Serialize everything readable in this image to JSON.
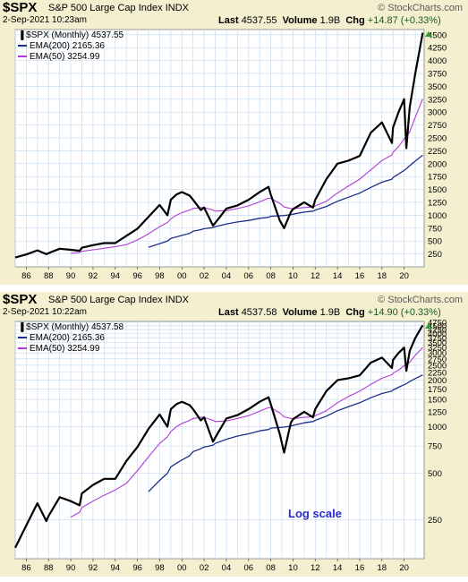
{
  "panels": [
    {
      "ticker": "$SPX",
      "index_name": "S&P 500 Large Cap Index",
      "exchange": "INDX",
      "brand": "© StockCharts.com",
      "datetime": "2-Sep-2021 10:23am",
      "last_label": "Last",
      "last_value": "4537.55",
      "volume_label": "Volume",
      "volume_value": "1.9B",
      "chg_label": "Chg",
      "chg_value": "+14.87 (+0.33%)",
      "legend_price": "$SPX (Monthly) 4537.55",
      "legend_ema200": "EMA(200) 2165.36",
      "legend_ema50": "EMA(50) 3254.99",
      "note": ""
    },
    {
      "ticker": "$SPX",
      "index_name": "S&P 500 Large Cap Index",
      "exchange": "INDX",
      "brand": "© StockCharts.com",
      "datetime": "2-Sep-2021 10:22am",
      "last_label": "Last",
      "last_value": "4537.58",
      "volume_label": "Volume",
      "volume_value": "1.9B",
      "chg_label": "Chg",
      "chg_value": "+14.90 (+0.33%)",
      "legend_price": "$SPX (Monthly) 4537.58",
      "legend_ema200": "EMA(200) 2165.36",
      "legend_ema50": "EMA(50) 3254.99",
      "note": "Log scale"
    }
  ],
  "colors": {
    "panel_bg": "#f3efcf",
    "plot_bg": "#ffffff",
    "grid": "#c9ddf0",
    "price": "#000000",
    "ema200": "#1c2f8c",
    "ema50": "#b03ad8",
    "up_marker": "#2f9e2f"
  },
  "chart_data": [
    {
      "type": "line",
      "scale": "linear",
      "x_tick_labels": [
        "86",
        "88",
        "90",
        "92",
        "94",
        "96",
        "98",
        "00",
        "02",
        "04",
        "06",
        "08",
        "10",
        "12",
        "14",
        "16",
        "18",
        "20"
      ],
      "y_tick_labels": [
        "250",
        "500",
        "750",
        "1000",
        "1250",
        "1500",
        "1750",
        "2000",
        "2250",
        "2500",
        "2750",
        "3000",
        "3250",
        "3500",
        "3750",
        "4000",
        "4250",
        "4500"
      ],
      "ylim": [
        0,
        4600
      ],
      "xlim": [
        1985.0,
        2021.8
      ],
      "grid": true,
      "legend_placement": "top-left",
      "x": [
        1985.0,
        1986.0,
        1987.0,
        1987.8,
        1988.0,
        1989.0,
        1990.0,
        1990.8,
        1991.0,
        1992.0,
        1993.0,
        1994.0,
        1995.0,
        1996.0,
        1997.0,
        1998.0,
        1998.7,
        1999.0,
        1999.5,
        2000.0,
        2000.7,
        2001.0,
        2001.7,
        2002.0,
        2002.8,
        2003.0,
        2004.0,
        2005.0,
        2006.0,
        2007.0,
        2007.8,
        2008.0,
        2008.8,
        2009.2,
        2009.8,
        2010.0,
        2011.0,
        2011.8,
        2012.0,
        2013.0,
        2014.0,
        2015.0,
        2016.0,
        2017.0,
        2018.0,
        2018.9,
        2019.0,
        2019.5,
        2020.0,
        2020.2,
        2020.5,
        2021.0,
        2021.67
      ],
      "series": [
        {
          "name": "$SPX (Monthly)",
          "values": [
            180,
            240,
            320,
            245,
            265,
            350,
            330,
            310,
            370,
            420,
            460,
            460,
            600,
            740,
            970,
            1200,
            1000,
            1300,
            1400,
            1450,
            1380,
            1300,
            1100,
            1150,
            800,
            850,
            1130,
            1190,
            1300,
            1450,
            1550,
            1400,
            900,
            750,
            1060,
            1120,
            1250,
            1150,
            1300,
            1700,
            2000,
            2060,
            2150,
            2600,
            2800,
            2400,
            2700,
            3000,
            3250,
            2300,
            3100,
            3750,
            4537
          ]
        },
        {
          "name": "EMA(200)",
          "values": [
            null,
            null,
            null,
            null,
            null,
            null,
            null,
            null,
            null,
            null,
            null,
            null,
            null,
            null,
            380,
            450,
            500,
            550,
            580,
            610,
            650,
            690,
            720,
            740,
            760,
            780,
            830,
            870,
            900,
            940,
            960,
            980,
            990,
            995,
            1010,
            1020,
            1060,
            1080,
            1100,
            1170,
            1270,
            1350,
            1430,
            1540,
            1640,
            1700,
            1730,
            1800,
            1870,
            1900,
            1960,
            2050,
            2165
          ]
        },
        {
          "name": "EMA(50)",
          "values": [
            null,
            null,
            null,
            null,
            null,
            null,
            260,
            280,
            300,
            330,
            360,
            390,
            430,
            520,
            640,
            780,
            860,
            930,
            1000,
            1050,
            1100,
            1130,
            1150,
            1150,
            1100,
            1080,
            1090,
            1130,
            1180,
            1260,
            1330,
            1330,
            1230,
            1160,
            1130,
            1130,
            1150,
            1160,
            1180,
            1270,
            1430,
            1570,
            1700,
            1880,
            2060,
            2170,
            2220,
            2330,
            2480,
            2520,
            2620,
            2900,
            3255
          ]
        }
      ]
    },
    {
      "type": "line",
      "scale": "log",
      "x_tick_labels": [
        "86",
        "88",
        "90",
        "92",
        "94",
        "96",
        "98",
        "00",
        "02",
        "04",
        "06",
        "08",
        "10",
        "12",
        "14",
        "16",
        "18",
        "20"
      ],
      "y_tick_labels": [
        "250",
        "500",
        "750",
        "1000",
        "1250",
        "1500",
        "1750",
        "2000",
        "2250",
        "2500",
        "2750",
        "3000",
        "3250",
        "3500",
        "3750",
        "4000",
        "4250",
        "4500",
        "4750"
      ],
      "ylim": [
        140,
        4800
      ],
      "xlim": [
        1985.0,
        2021.8
      ],
      "grid": true,
      "legend_placement": "top-left",
      "x": [
        1985.0,
        1986.0,
        1987.0,
        1987.8,
        1988.0,
        1989.0,
        1990.0,
        1990.8,
        1991.0,
        1992.0,
        1993.0,
        1994.0,
        1995.0,
        1996.0,
        1997.0,
        1998.0,
        1998.7,
        1999.0,
        1999.5,
        2000.0,
        2000.7,
        2001.0,
        2001.7,
        2002.0,
        2002.8,
        2003.0,
        2004.0,
        2005.0,
        2006.0,
        2007.0,
        2007.8,
        2008.0,
        2008.8,
        2009.2,
        2009.8,
        2010.0,
        2011.0,
        2011.8,
        2012.0,
        2013.0,
        2014.0,
        2015.0,
        2016.0,
        2017.0,
        2018.0,
        2018.9,
        2019.0,
        2019.5,
        2020.0,
        2020.2,
        2020.5,
        2021.0,
        2021.67
      ],
      "series": [
        {
          "name": "$SPX (Monthly)",
          "values": [
            165,
            230,
            320,
            245,
            265,
            350,
            330,
            310,
            370,
            420,
            460,
            460,
            600,
            740,
            970,
            1200,
            1000,
            1300,
            1400,
            1450,
            1380,
            1300,
            1100,
            1150,
            800,
            850,
            1130,
            1190,
            1300,
            1450,
            1550,
            1400,
            900,
            680,
            1060,
            1120,
            1250,
            1150,
            1300,
            1700,
            2000,
            2060,
            2150,
            2600,
            2800,
            2400,
            2700,
            3000,
            3250,
            2300,
            3100,
            3750,
            4537
          ]
        },
        {
          "name": "EMA(200)",
          "values": [
            null,
            null,
            null,
            null,
            null,
            null,
            null,
            null,
            null,
            null,
            null,
            null,
            null,
            null,
            380,
            450,
            500,
            550,
            580,
            610,
            650,
            690,
            720,
            740,
            760,
            780,
            830,
            870,
            900,
            940,
            960,
            980,
            990,
            995,
            1010,
            1020,
            1060,
            1080,
            1100,
            1170,
            1270,
            1350,
            1430,
            1540,
            1640,
            1700,
            1730,
            1800,
            1870,
            1900,
            1960,
            2050,
            2165
          ]
        },
        {
          "name": "EMA(50)",
          "values": [
            null,
            null,
            null,
            null,
            null,
            null,
            260,
            280,
            300,
            330,
            360,
            390,
            430,
            520,
            640,
            780,
            860,
            930,
            1000,
            1050,
            1100,
            1130,
            1150,
            1150,
            1100,
            1080,
            1090,
            1130,
            1180,
            1260,
            1330,
            1330,
            1230,
            1160,
            1130,
            1130,
            1150,
            1160,
            1180,
            1270,
            1430,
            1570,
            1700,
            1880,
            2060,
            2170,
            2220,
            2330,
            2480,
            2520,
            2620,
            2900,
            3255
          ]
        }
      ]
    }
  ]
}
